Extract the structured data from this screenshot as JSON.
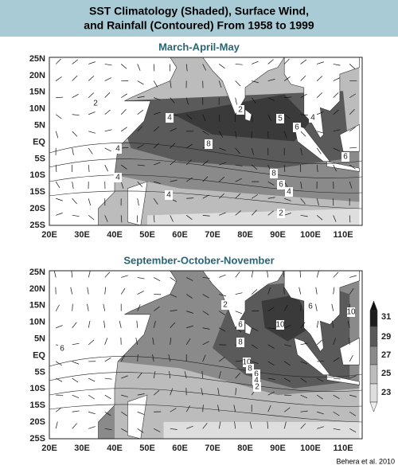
{
  "header": {
    "title_line1": "SST Climatology (Shaded), Surface Wind,",
    "title_line2": "and Rainfall (Contoured) From 1958 to 1999"
  },
  "lat_labels": [
    "25N",
    "20N",
    "15N",
    "10N",
    "5N",
    "EQ",
    "5S",
    "10S",
    "15S",
    "20S",
    "25S"
  ],
  "lon_labels": [
    "20E",
    "30E",
    "40E",
    "50E",
    "60E",
    "70E",
    "80E",
    "90E",
    "100E",
    "110E"
  ],
  "panels": [
    {
      "title": "March-April-May",
      "contour_labels": [
        "2",
        "4",
        "8",
        "5",
        "6",
        "8",
        "6",
        "4",
        "2",
        "4",
        "4",
        "4",
        "2",
        "4",
        "6"
      ]
    },
    {
      "title": "September-October-November",
      "contour_labels": [
        "6",
        "8",
        "10",
        "10",
        "6",
        "6",
        "10",
        "8",
        "6",
        "4",
        "2",
        "2"
      ]
    }
  ],
  "colorbar": {
    "ticks": [
      "31",
      "29",
      "27",
      "25",
      "23"
    ]
  },
  "credit": "Behera et al. 2010"
}
